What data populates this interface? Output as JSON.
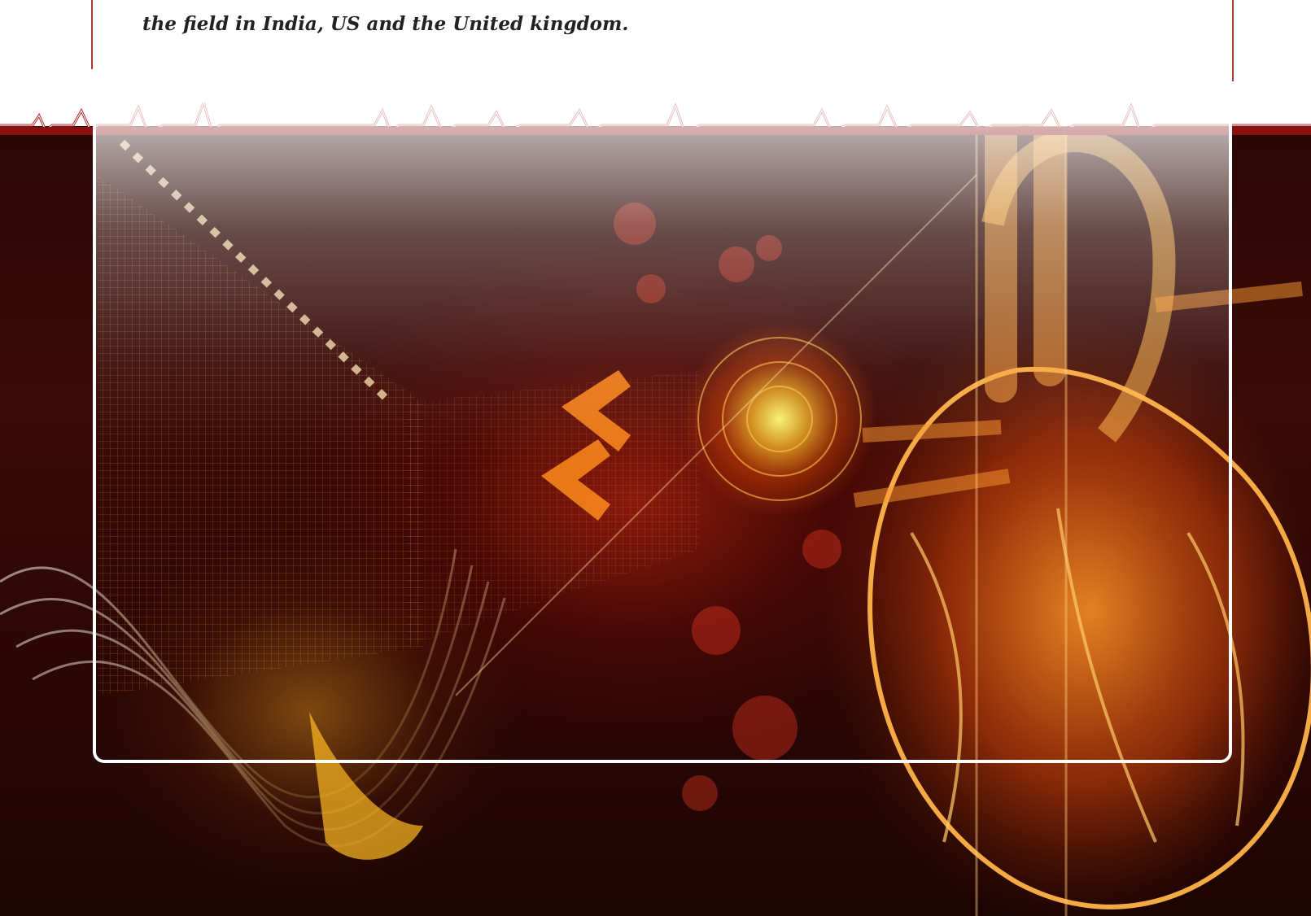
{
  "caption": {
    "text": "the field in India, US and the United kingdom."
  },
  "artwork": {
    "subject": "glowing-heart-illustration",
    "accent_color": "#b03a3a",
    "glow_color": "#ffd43a"
  }
}
